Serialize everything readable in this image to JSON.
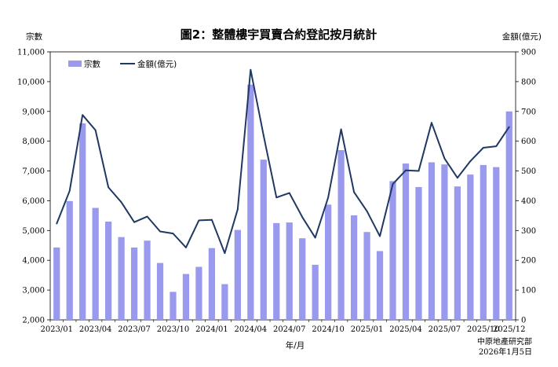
{
  "chart_data": {
    "type": "bar",
    "title": "圖2：整體樓宇買賣合約登記按月統計",
    "ylabel_left": "宗數",
    "ylabel_right": "金額(億元)",
    "xlabel": "年/月",
    "ylim_left": [
      2000,
      11000
    ],
    "yticks_left": [
      "2,000",
      "3,000",
      "4,000",
      "5,000",
      "6,000",
      "7,000",
      "8,000",
      "9,000",
      "10,000",
      "11,000"
    ],
    "ylim_right": [
      0,
      900
    ],
    "yticks_right": [
      "0",
      "100",
      "200",
      "300",
      "400",
      "500",
      "600",
      "700",
      "800",
      "900"
    ],
    "legend_position": "top-left",
    "categories": [
      "2023/01",
      "2023/02",
      "2023/03",
      "2023/04",
      "2023/05",
      "2023/06",
      "2023/07",
      "2023/08",
      "2023/09",
      "2023/10",
      "2023/11",
      "2023/12",
      "2024/01",
      "2024/02",
      "2024/03",
      "2024/04",
      "2024/05",
      "2024/06",
      "2024/07",
      "2024/08",
      "2024/09",
      "2024/10",
      "2024/11",
      "2024/12",
      "2025/01",
      "2025/02",
      "2025/03",
      "2025/04",
      "2025/05",
      "2025/06",
      "2025/07",
      "2025/08",
      "2025/09",
      "2025/10",
      "2025/11",
      "2025/12"
    ],
    "x_tick_labels": [
      {
        "index": 0,
        "label": "2023/01"
      },
      {
        "index": 3,
        "label": "2023/04"
      },
      {
        "index": 6,
        "label": "2023/07"
      },
      {
        "index": 9,
        "label": "2023/10"
      },
      {
        "index": 12,
        "label": "2024/01"
      },
      {
        "index": 15,
        "label": "2024/04"
      },
      {
        "index": 18,
        "label": "2024/07"
      },
      {
        "index": 21,
        "label": "2024/10"
      },
      {
        "index": 24,
        "label": "2025/01"
      },
      {
        "index": 27,
        "label": "2025/04"
      },
      {
        "index": 30,
        "label": "2025/07"
      },
      {
        "index": 33,
        "label": "2025/10"
      },
      {
        "index": 35,
        "label": "2025/12"
      }
    ],
    "series": [
      {
        "name": "宗數",
        "type": "bar",
        "axis": "left",
        "color": "#9999ee",
        "values": [
          4430,
          5990,
          8600,
          5760,
          5300,
          4780,
          4430,
          4660,
          3910,
          2940,
          3540,
          3780,
          4410,
          3200,
          5020,
          9900,
          7380,
          5250,
          5270,
          4740,
          3850,
          5870,
          7700,
          5510,
          4950,
          4310,
          6660,
          7250,
          6460,
          7290,
          7220,
          6480,
          6880,
          7200,
          7130,
          9000
        ]
      },
      {
        "name": "金額(億元)",
        "type": "line",
        "axis": "right",
        "color": "#1f3864",
        "values": [
          323,
          433,
          688,
          637,
          445,
          395,
          328,
          347,
          297,
          290,
          243,
          334,
          336,
          224,
          371,
          840,
          620,
          411,
          426,
          345,
          276,
          411,
          640,
          429,
          365,
          281,
          456,
          502,
          500,
          662,
          542,
          477,
          533,
          578,
          583,
          648
        ]
      }
    ]
  },
  "source": {
    "org": "中原地產研究部",
    "date": "2026年1月5日"
  }
}
